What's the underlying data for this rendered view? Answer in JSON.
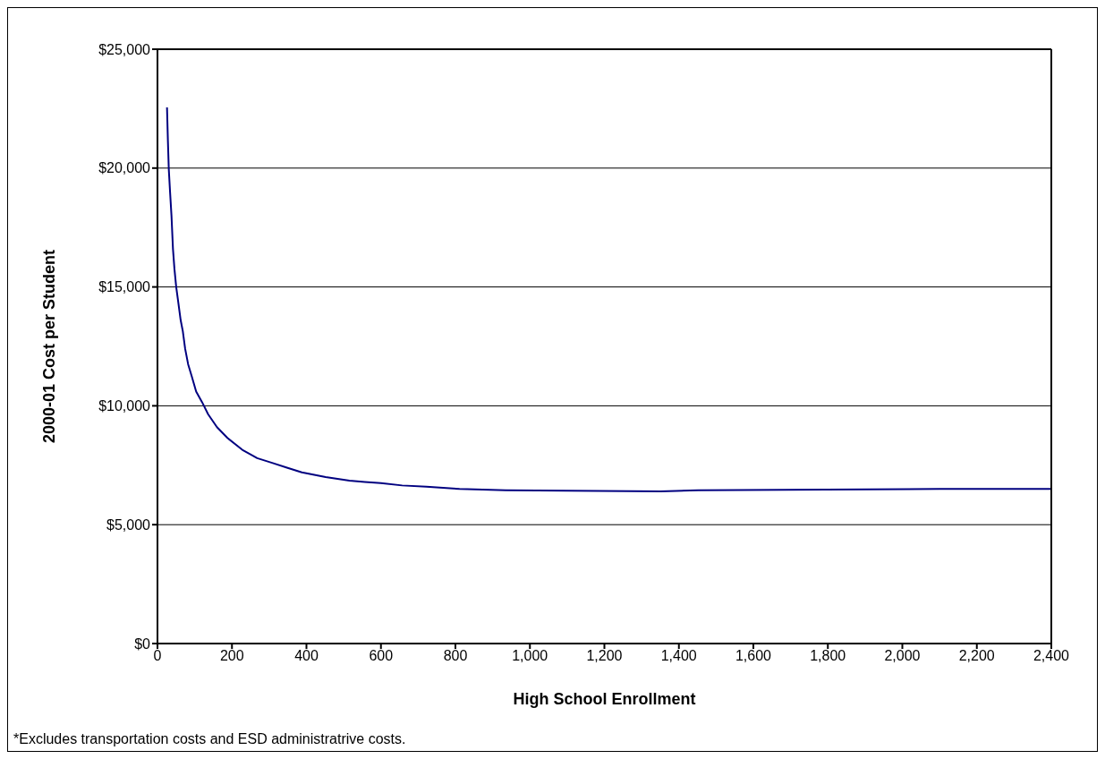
{
  "chart_data": {
    "type": "line",
    "xlabel": "High School Enrollment",
    "ylabel": "2000-01 Cost per Student",
    "annotations": [
      "*Excludes transportation costs and ESD administratrive costs."
    ],
    "x": [
      25.6,
      28,
      30.4,
      33.6,
      37.6,
      41.6,
      45.6,
      50.3,
      55.9,
      62.3,
      67.9,
      74.3,
      82.3,
      91.9,
      103.9,
      119.9,
      135.9,
      159.8,
      187.8,
      227.8,
      267.7,
      307.7,
      347.6,
      387.6,
      451.5,
      515.5,
      557,
      600,
      657,
      722,
      811,
      935,
      1351,
      1452,
      2100,
      2400
    ],
    "series": [
      {
        "color": "#000080",
        "values": [
          22550,
          21150,
          19950,
          19050,
          18000,
          16600,
          15750,
          15000,
          14350,
          13600,
          13150,
          12400,
          11750,
          11250,
          10600,
          10150,
          9650,
          9100,
          8650,
          8150,
          7800,
          7600,
          7400,
          7200,
          7000,
          6850,
          6800,
          6750,
          6650,
          6600,
          6500,
          6450,
          6400,
          6450,
          6500,
          6500
        ]
      }
    ],
    "xlim": [
      0,
      2400
    ],
    "xticks": [
      0,
      200,
      400,
      600,
      800,
      {
        "value": 1000,
        "label": "1,000"
      },
      {
        "value": 1200,
        "label": "1,200"
      },
      {
        "value": 1400,
        "label": "1,400"
      },
      {
        "value": 1600,
        "label": "1,600"
      },
      {
        "value": 1800,
        "label": "1,800"
      },
      {
        "value": 2000,
        "label": "2,000"
      },
      {
        "value": 2200,
        "label": "2,200"
      },
      {
        "value": 2400,
        "label": "2,400"
      }
    ],
    "ylim": [
      0,
      25000
    ],
    "yticks": [
      {
        "value": 0,
        "label": "$0"
      },
      {
        "value": 5000,
        "label": "$5,000"
      },
      {
        "value": 10000,
        "label": "$10,000"
      },
      {
        "value": 15000,
        "label": "$15,000"
      },
      {
        "value": 20000,
        "label": "$20,000"
      },
      {
        "value": 25000,
        "label": "$25,000"
      }
    ],
    "grid": "y",
    "legend": false,
    "marker": "none",
    "line_style": "solid"
  }
}
